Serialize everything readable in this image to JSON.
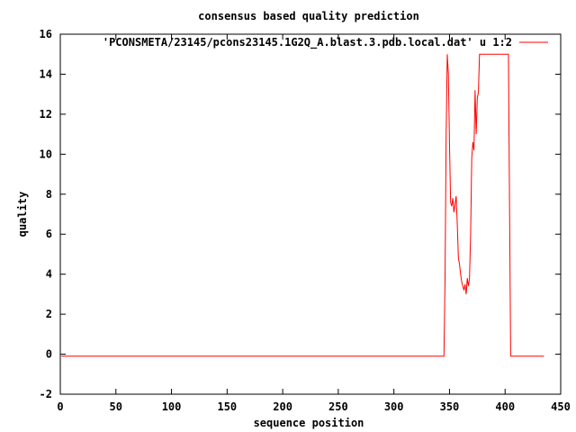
{
  "chart_data": {
    "type": "line",
    "title": "consensus based quality prediction",
    "xlabel": "sequence position",
    "ylabel": "quality",
    "xlim": [
      0,
      450
    ],
    "ylim": [
      -2,
      16
    ],
    "xticks": [
      0,
      50,
      100,
      150,
      200,
      250,
      300,
      350,
      400,
      450
    ],
    "yticks": [
      -2,
      0,
      2,
      4,
      6,
      8,
      10,
      12,
      14,
      16
    ],
    "grid": false,
    "legend_position": "top-right",
    "series": [
      {
        "name": "'PCONSMETA/23145/pcons23145.1G2Q_A.blast.3.pdb.local.dat' u 1:2",
        "color": "#ff0000",
        "x": [
          1,
          345,
          346,
          347,
          348,
          349,
          350,
          351,
          352,
          353,
          354,
          355,
          356,
          357,
          358,
          359,
          360,
          361,
          362,
          363,
          364,
          365,
          366,
          367,
          368,
          369,
          370,
          371,
          372,
          373,
          374,
          375,
          376,
          377,
          378,
          379,
          380,
          381,
          382,
          383,
          384,
          385,
          386,
          403,
          404,
          405,
          435
        ],
        "y": [
          -0.1,
          -0.1,
          3.8,
          11.0,
          15.0,
          14.0,
          10.5,
          7.6,
          7.4,
          7.8,
          7.1,
          7.5,
          7.9,
          6.5,
          4.8,
          4.5,
          4.0,
          3.6,
          3.4,
          3.2,
          3.5,
          3.0,
          3.8,
          3.4,
          3.8,
          6.0,
          9.8,
          10.6,
          10.2,
          13.2,
          11.0,
          12.8,
          13.1,
          15.0,
          15.0,
          15.0,
          15.0,
          15.0,
          15.0,
          15.0,
          15.0,
          15.0,
          15.0,
          15.0,
          7.5,
          -0.1,
          -0.1
        ]
      }
    ]
  }
}
